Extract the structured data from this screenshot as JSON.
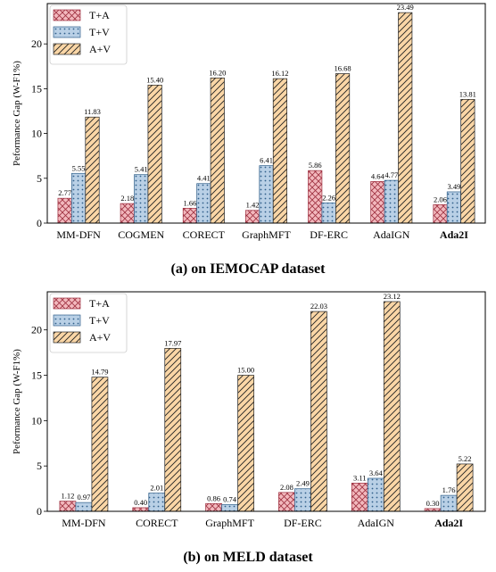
{
  "colors": {
    "T+A": {
      "fill": "#f2b8bd",
      "stroke": "#9e3040"
    },
    "T+V": {
      "fill": "#b9d0e6",
      "stroke": "#2f5f8a"
    },
    "A+V": {
      "fill": "#fad6a6",
      "stroke": "#222222"
    }
  },
  "chart_data": [
    {
      "type": "bar",
      "caption": "(a) on IEMOCAP dataset",
      "ylabel": "Peformance Gap (W-F1%)",
      "ylim": [
        0,
        24.5
      ],
      "yticks": [
        0,
        5,
        10,
        15,
        20
      ],
      "legend": "top-left",
      "categories": [
        "MM-DFN",
        "COGMEN",
        "CORECT",
        "GraphMFT",
        "DF-ERC",
        "AdaIGN",
        "Ada2I"
      ],
      "bold_category": "Ada2I",
      "series": [
        {
          "name": "T+A",
          "values": [
            2.77,
            2.18,
            1.66,
            1.42,
            5.86,
            4.64,
            2.06
          ]
        },
        {
          "name": "T+V",
          "values": [
            5.55,
            5.41,
            4.41,
            6.41,
            2.26,
            4.77,
            3.49
          ]
        },
        {
          "name": "A+V",
          "values": [
            11.83,
            15.4,
            16.2,
            16.12,
            16.68,
            23.49,
            13.81
          ]
        }
      ],
      "value_labels": {
        "T+A": [
          "2.77",
          "2.18",
          "1.66",
          "1.42",
          "5.86",
          "4.64",
          "2.06"
        ],
        "T+V": [
          "5.55",
          "5.41",
          "4.41",
          "6.41",
          "2.26",
          "4.77",
          "3.49"
        ],
        "A+V": [
          "11.83",
          "15.40",
          "16.20",
          "16.12",
          "16.68",
          "23.49",
          "13.81"
        ]
      }
    },
    {
      "type": "bar",
      "caption": "(b) on MELD dataset",
      "ylabel": "Peformance Gap (W-F1%)",
      "ylim": [
        0,
        24.2
      ],
      "yticks": [
        0,
        5,
        10,
        15,
        20
      ],
      "legend": "top-left",
      "categories": [
        "MM-DFN",
        "CORECT",
        "GraphMFT",
        "DF-ERC",
        "AdaIGN",
        "Ada2I"
      ],
      "bold_category": "Ada2I",
      "series": [
        {
          "name": "T+A",
          "values": [
            1.12,
            0.4,
            0.86,
            2.08,
            3.11,
            0.3
          ]
        },
        {
          "name": "T+V",
          "values": [
            0.97,
            2.01,
            0.74,
            2.49,
            3.64,
            1.76
          ]
        },
        {
          "name": "A+V",
          "values": [
            14.79,
            17.97,
            15.0,
            22.03,
            23.12,
            5.22
          ]
        }
      ],
      "value_labels": {
        "T+A": [
          "1.12",
          "0.40",
          "0.86",
          "2.08",
          "3.11",
          "0.30"
        ],
        "T+V": [
          "0.97",
          "2.01",
          "0.74",
          "2.49",
          "3.64",
          "1.76"
        ],
        "A+V": [
          "14.79",
          "17.97",
          "15.00",
          "22.03",
          "23.12",
          "5.22"
        ]
      }
    }
  ]
}
